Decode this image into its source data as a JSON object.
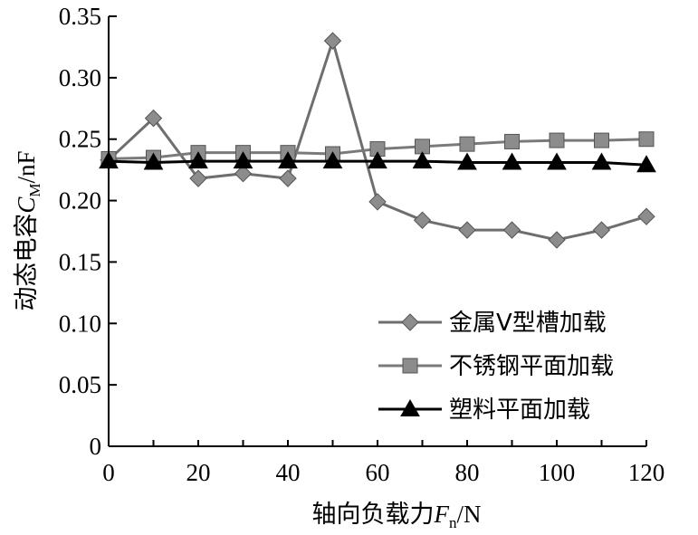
{
  "chart_data": {
    "type": "line",
    "xlabel": "轴向负载力",
    "xlabel_var": "F",
    "xlabel_sub": "n",
    "xlabel_unit": "/N",
    "ylabel": "动态电容",
    "ylabel_var": "C",
    "ylabel_sub": "M",
    "ylabel_unit": "/nF",
    "xlim": [
      0,
      120
    ],
    "ylim": [
      0,
      0.35
    ],
    "x_ticks": [
      "0",
      "20",
      "40",
      "60",
      "80",
      "100",
      "120"
    ],
    "y_ticks": [
      "0",
      "0.05",
      "0.10",
      "0.15",
      "0.20",
      "0.25",
      "0.30",
      "0.35"
    ],
    "x": [
      0,
      10,
      20,
      30,
      40,
      50,
      60,
      70,
      80,
      90,
      100,
      110,
      120
    ],
    "legend_position": "bottom-right",
    "series": [
      {
        "name": "金属V型槽加载",
        "marker": "diamond",
        "color": "#6e6e6e",
        "marker_color": "#8c8c8c",
        "values": [
          0.233,
          0.267,
          0.218,
          0.222,
          0.218,
          0.33,
          0.199,
          0.184,
          0.176,
          0.176,
          0.168,
          0.176,
          0.187
        ]
      },
      {
        "name": "不锈钢平面加载",
        "marker": "square",
        "color": "#7a7a7a",
        "marker_color": "#8c8c8c",
        "values": [
          0.234,
          0.235,
          0.239,
          0.239,
          0.239,
          0.238,
          0.242,
          0.244,
          0.246,
          0.248,
          0.249,
          0.249,
          0.25
        ]
      },
      {
        "name": "塑料平面加载",
        "marker": "triangle",
        "color": "#000000",
        "marker_color": "#000000",
        "values": [
          0.232,
          0.231,
          0.232,
          0.232,
          0.232,
          0.232,
          0.232,
          0.232,
          0.231,
          0.231,
          0.231,
          0.231,
          0.229
        ]
      }
    ]
  }
}
